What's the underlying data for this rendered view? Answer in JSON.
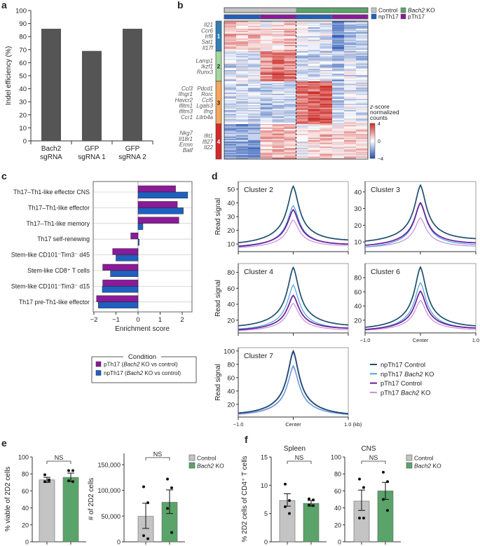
{
  "figure_labels": {
    "a": "a",
    "b": "b",
    "c": "c",
    "d": "d",
    "e": "e",
    "f": "f"
  },
  "colors": {
    "bar_a": "#555555",
    "control": "#c4c4c4",
    "bach2_ko": "#5aa469",
    "npTh17": "#1f5fbf",
    "pTh17": "#8b1a9a",
    "heat_high": "#cc2a25",
    "heat_low": "#1f4fb0",
    "npTh17_control": "#1f4e6e",
    "npTh17_bach2_ko": "#4aa3df",
    "pTh17_control": "#6a1b9a",
    "pTh17_bach2_ko": "#c48fd8"
  },
  "chart_data": [
    {
      "panel": "a",
      "type": "bar",
      "categories": [
        [
          "Bach2",
          "sgRNA"
        ],
        [
          "GFP",
          "sgRNA 1"
        ],
        [
          "GFP",
          "sgRNA 2"
        ]
      ],
      "values": [
        86,
        69,
        86
      ],
      "ylabel": "Indel efficiency (%)",
      "ylim": [
        0,
        100
      ],
      "yticks": [
        0,
        10,
        20,
        30,
        40,
        50,
        60,
        70,
        80,
        90,
        100
      ]
    },
    {
      "panel": "b",
      "type": "heatmap",
      "column_groups": [
        {
          "condition": "Control",
          "cell_type": "npTh17",
          "columns": 3
        },
        {
          "condition": "Control",
          "cell_type": "pTh17",
          "columns": 3
        },
        {
          "condition": "Bach2 KO",
          "cell_type": "npTh17",
          "columns": 3
        },
        {
          "condition": "Bach2 KO",
          "cell_type": "pTh17",
          "columns": 3
        }
      ],
      "legend": [
        {
          "parts": [
            "Control"
          ],
          "color": "#c4c4c4"
        },
        {
          "parts": [
            "",
            "Bach2",
            " KO"
          ],
          "color": "#5aa469"
        },
        {
          "parts": [
            "npTh17"
          ],
          "color": "#1f5fbf"
        },
        {
          "parts": [
            "pTh17"
          ],
          "color": "#8b1a9a"
        }
      ],
      "colorbar": {
        "title": [
          [
            "",
            "z",
            "-score"
          ],
          [
            "normalized"
          ],
          [
            "counts"
          ]
        ],
        "ticks": [
          "4",
          "0",
          "−4"
        ],
        "range": [
          -4,
          4
        ]
      },
      "clusters": [
        {
          "id": "1",
          "color": "#2f7fb8",
          "genes_left": [],
          "genes_right": [
            "Il21",
            "Ccr6",
            "Irf8",
            "Sat1",
            "Il17f"
          ],
          "column_means": [
            1.0,
            0.8,
            1.0,
            0.2,
            0.6,
            1.0,
            -0.1,
            -0.6,
            -0.3,
            -2.0,
            -1.2,
            -0.8
          ]
        },
        {
          "id": "2",
          "color": "#a3d99c",
          "genes_left": [],
          "genes_right": [
            "Lamp1",
            "Ikzf1",
            "Runx3"
          ],
          "column_means": [
            -0.6,
            -0.5,
            -0.5,
            1.6,
            2.0,
            1.8,
            -0.8,
            -0.6,
            -0.6,
            -1.0,
            -0.4,
            -0.7
          ]
        },
        {
          "id": "3",
          "color": "#f5a65b",
          "genes_left": [
            "Ccl3",
            "Ifngr1",
            "Havcr2",
            "Ifitm1",
            "Ifitm3",
            "Ccr1"
          ],
          "genes_right": [
            "Pdcd1",
            "Rorc",
            "Ccl5",
            "Lgals3",
            "Ifng",
            "Lilrb4a"
          ],
          "column_means": [
            -0.5,
            -0.6,
            -0.5,
            -0.9,
            -0.7,
            -0.6,
            1.8,
            2.2,
            2.2,
            -0.8,
            -0.2,
            -0.4
          ]
        },
        {
          "id": "4",
          "color": "#d42a2a",
          "genes_left": [
            "Nkg7",
            "Il18r1",
            "Ermn",
            "Batf"
          ],
          "genes_right": [
            "Ifit1",
            "Ifi27",
            "Il22"
          ],
          "column_means": [
            -1.5,
            -1.6,
            -1.6,
            0.9,
            1.0,
            1.0,
            0.0,
            0.5,
            0.9,
            0.3,
            0.8,
            0.5
          ]
        }
      ]
    },
    {
      "panel": "c",
      "type": "bar",
      "orientation": "horizontal",
      "categories": [
        "Th17–Th1-like effector CNS",
        "Th17–Th1-like effector",
        "Th17–Th1-like memory",
        "Th17 self-renewing",
        "Stem-like CD101⁻Tim3⁻  d45",
        "Stem-like CD8⁺  T cells",
        "Stem-like CD101⁻Tim3⁻  d15",
        "Th17 pre-Th1-like effector"
      ],
      "series": [
        {
          "name_parts": [
            "pTh17 (",
            "Bach2",
            " KO vs control)"
          ],
          "color": "#8b1a9a",
          "values": [
            1.7,
            1.78,
            1.85,
            -0.33,
            -1.15,
            -1.6,
            -1.6,
            -1.88
          ]
        },
        {
          "name_parts": [
            "npTh17 (",
            "Bach2",
            " KO vs control)"
          ],
          "color": "#1f5fbf",
          "values": [
            2.25,
            2.05,
            0.22,
            0.05,
            -1.0,
            -1.25,
            -1.62,
            -1.8
          ]
        }
      ],
      "xlabel": "Enrichment score",
      "xlim": [
        -2.05,
        2.45
      ],
      "xticks": [
        "−2",
        "−1",
        "0",
        "1",
        "2"
      ],
      "xtick_values": [
        -2,
        -1,
        0,
        1,
        2
      ],
      "legend_title": "Condition",
      "grid": true
    },
    {
      "panel": "d",
      "type": "line",
      "ylabel": "Read signal",
      "xtick_labels": {
        "left": "−1.0",
        "center": "Center",
        "right": "1.0",
        "right_kb": "1.0 (kb)"
      },
      "xrange_kb": [
        -1.0,
        1.0
      ],
      "series_legend": [
        {
          "parts": [
            "npTh17 Control"
          ],
          "color": "#1f4e6e"
        },
        {
          "parts": [
            "npTh17 ",
            "Bach2",
            " KO"
          ],
          "color": "#4aa3df"
        },
        {
          "parts": [
            "pTh17 Control"
          ],
          "color": "#6a1b9a"
        },
        {
          "parts": [
            "pTh17 ",
            "Bach2",
            " KO"
          ],
          "color": "#c48fd8"
        }
      ],
      "subplots": [
        {
          "title": "Cluster 2",
          "ylim": [
            4.5,
            55.5
          ],
          "yticks": [
            10,
            20,
            30,
            40,
            50
          ],
          "profiles": [
            {
              "peak": 52,
              "edge_left": 11,
              "edge_right": 13
            },
            {
              "peak": 38,
              "edge_left": 8,
              "edge_right": 10
            },
            {
              "peak": 35,
              "edge_left": 8.5,
              "edge_right": 10
            },
            {
              "peak": 27.5,
              "edge_left": 7.5,
              "edge_right": 9
            }
          ]
        },
        {
          "title": "Cluster 3",
          "ylim": [
            4.2,
            46.2
          ],
          "yticks": [
            10,
            20,
            30,
            40
          ],
          "profiles": [
            {
              "peak": 44,
              "edge_left": 10.5,
              "edge_right": 12
            },
            {
              "peak": 33,
              "edge_left": 7,
              "edge_right": 8.5
            },
            {
              "peak": 33.5,
              "edge_left": 8,
              "edge_right": 9.5
            },
            {
              "peak": 24.5,
              "edge_left": 7,
              "edge_right": 7.5
            }
          ]
        },
        {
          "title": "Cluster 4",
          "ylim": [
            4,
            91
          ],
          "yticks": [
            20,
            40,
            60,
            80
          ],
          "profiles": [
            {
              "peak": 86,
              "edge_left": 13,
              "edge_right": 14
            },
            {
              "peak": 64,
              "edge_left": 9,
              "edge_right": 10
            },
            {
              "peak": 51,
              "edge_left": 8,
              "edge_right": 10
            },
            {
              "peak": 41,
              "edge_left": 7,
              "edge_right": 8
            }
          ]
        },
        {
          "title": "Cluster 6",
          "ylim": [
            2,
            100
          ],
          "yticks": [
            20,
            40,
            60,
            80
          ],
          "profiles": [
            {
              "peak": 95,
              "edge_left": 10,
              "edge_right": 12
            },
            {
              "peak": 73,
              "edge_left": 7,
              "edge_right": 9
            },
            {
              "peak": 61,
              "edge_left": 7,
              "edge_right": 9
            },
            {
              "peak": 48,
              "edge_left": 6,
              "edge_right": 7
            }
          ]
        },
        {
          "title": "Cluster 7",
          "ylim": [
            1,
            105
          ],
          "yticks": [
            20,
            40,
            60,
            80,
            100
          ],
          "profiles": [
            {
              "peak": 99,
              "edge_left": 7,
              "edge_right": 6
            },
            {
              "peak": 78,
              "edge_left": 6,
              "edge_right": 5
            },
            {
              "peak": 100,
              "edge_left": 7,
              "edge_right": 6
            },
            {
              "peak": 76,
              "edge_left": 5,
              "edge_right": 5
            }
          ]
        }
      ]
    },
    {
      "panel": "e",
      "type": "bar",
      "categories": [
        "Control",
        "Bach2 KO"
      ],
      "values": [
        73,
        76
      ],
      "sem": [
        [
          70,
          76
        ],
        [
          71,
          81
        ]
      ],
      "points": [
        [
          79,
          72,
          71,
          73
        ],
        [
          84,
          84,
          72,
          71
        ]
      ],
      "ylabel": "% viable of 2D2 cells",
      "ylim": [
        0,
        100
      ],
      "yticks": [
        0,
        20,
        40,
        60,
        80,
        100
      ],
      "ytick_labels": [
        "0",
        "20",
        "40",
        "60",
        "80",
        "100"
      ],
      "annotation": "NS"
    },
    {
      "panel": "e",
      "type": "bar",
      "categories": [
        "Control",
        "Bach2 KO"
      ],
      "values": [
        49500,
        77000
      ],
      "sem": [
        [
          26000,
          75000
        ],
        [
          55000,
          101000
        ]
      ],
      "points": [
        [
          107000,
          76000,
          12000,
          6000
        ],
        [
          122000,
          105000,
          65000,
          18000
        ]
      ],
      "ylabel": "# of 2D2 cells",
      "ylim": [
        0,
        172000
      ],
      "yticks": [
        0,
        50000,
        100000,
        150000
      ],
      "ytick_labels": [
        "0",
        "50,000",
        "100,000",
        "150,000"
      ],
      "annotation": "NS",
      "legend": [
        {
          "parts": [
            "Control"
          ],
          "color": "#c4c4c4"
        },
        {
          "parts": [
            "",
            "Bach2",
            " KO"
          ],
          "color": "#5aa469"
        }
      ]
    },
    {
      "panel": "f",
      "type": "bar",
      "title": "Spleen",
      "categories": [
        "Control",
        "Bach2 KO"
      ],
      "values": [
        7.3,
        6.8
      ],
      "sem": [
        [
          6.3,
          8.5
        ],
        [
          6.3,
          7.3
        ]
      ],
      "points": [
        [
          10.2,
          7.3,
          6.2,
          5.0
        ],
        [
          7.6,
          7.4,
          6.5,
          6.4
        ]
      ],
      "ylabel": "% 2D2 cells of CD4⁺ T cells",
      "ylim": [
        0,
        15
      ],
      "yticks": [
        0,
        5,
        10,
        15
      ],
      "ytick_labels": [
        "0",
        "5",
        "10",
        "15"
      ],
      "annotation": "NS"
    },
    {
      "panel": "f",
      "type": "bar",
      "title": "CNS",
      "categories": [
        "Control",
        "Bach2 KO"
      ],
      "values": [
        48,
        60
      ],
      "sem": [
        [
          37,
          61
        ],
        [
          50,
          70
        ]
      ],
      "points": [
        [
          74,
          64,
          28,
          28
        ],
        [
          82,
          71,
          50,
          37
        ]
      ],
      "ylim": [
        0,
        100
      ],
      "yticks": [
        0,
        20,
        40,
        60,
        80,
        100
      ],
      "ytick_labels": [
        "0",
        "20",
        "40",
        "60",
        "80",
        "100"
      ],
      "annotation": "NS",
      "legend": [
        {
          "parts": [
            "Control"
          ],
          "color": "#c4c4c4"
        },
        {
          "parts": [
            "",
            "Bach2",
            " KO"
          ],
          "color": "#5aa469"
        }
      ]
    }
  ]
}
